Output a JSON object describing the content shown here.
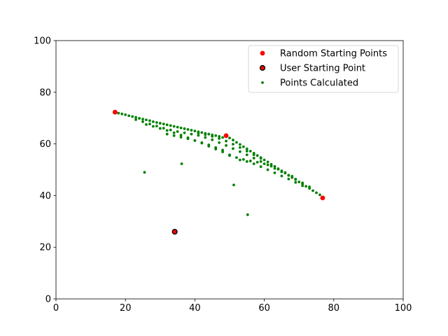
{
  "chart_data": {
    "type": "scatter",
    "title": "",
    "xlabel": "",
    "ylabel": "",
    "xlim": [
      0,
      100
    ],
    "ylim": [
      0,
      100
    ],
    "xticks": [
      "0",
      "20",
      "40",
      "60",
      "80",
      "100"
    ],
    "yticks": [
      "0",
      "20",
      "40",
      "60",
      "80",
      "100"
    ],
    "grid": false,
    "legend_position": "top-right",
    "series": [
      {
        "name": "Random Starting Points",
        "color": "#ff0000",
        "edge_color": "",
        "marker": "large-dot",
        "points": [
          [
            17,
            72.3
          ],
          [
            49,
            63.2
          ],
          [
            76.8,
            39.1
          ]
        ]
      },
      {
        "name": "User Starting Point",
        "color": "#ff0000",
        "edge_color": "#000000",
        "marker": "large-dot-outlined",
        "points": [
          [
            34.2,
            26
          ]
        ]
      },
      {
        "name": "Points Calculated",
        "color": "#008000",
        "edge_color": "",
        "marker": "small-dot",
        "points": [
          [
            18,
            71.9
          ],
          [
            19,
            71.6
          ],
          [
            20,
            71.3
          ],
          [
            21,
            70.9
          ],
          [
            22,
            70.6
          ],
          [
            23,
            70.3
          ],
          [
            24,
            69.9
          ],
          [
            25,
            69.6
          ],
          [
            26,
            69.3
          ],
          [
            27,
            69
          ],
          [
            28,
            68.6
          ],
          [
            29,
            68.3
          ],
          [
            30,
            68
          ],
          [
            31,
            67.7
          ],
          [
            32,
            67.4
          ],
          [
            33,
            67.1
          ],
          [
            34,
            66.8
          ],
          [
            35,
            66.5
          ],
          [
            36,
            66.2
          ],
          [
            37,
            65.9
          ],
          [
            38,
            65.6
          ],
          [
            39,
            65.3
          ],
          [
            40,
            65
          ],
          [
            41,
            64.7
          ],
          [
            42,
            64.4
          ],
          [
            43,
            64.1
          ],
          [
            44,
            63.8
          ],
          [
            45,
            63.5
          ],
          [
            46,
            63.2
          ],
          [
            47,
            62.9
          ],
          [
            48,
            62.5
          ],
          [
            50,
            62.3
          ],
          [
            51,
            61.5
          ],
          [
            52,
            60.6
          ],
          [
            53,
            59.8
          ],
          [
            54,
            58.9
          ],
          [
            55,
            58.1
          ],
          [
            56,
            57.2
          ],
          [
            57,
            56.4
          ],
          [
            58,
            55.5
          ],
          [
            59,
            54.7
          ],
          [
            60,
            53.8
          ],
          [
            61,
            53
          ],
          [
            62,
            52.1
          ],
          [
            63,
            51.3
          ],
          [
            64,
            50.4
          ],
          [
            65,
            49.6
          ],
          [
            66,
            48.7
          ],
          [
            67,
            47.9
          ],
          [
            68,
            47
          ],
          [
            69,
            46.2
          ],
          [
            70,
            45.3
          ],
          [
            71,
            44.5
          ],
          [
            72,
            43.6
          ],
          [
            73,
            42.8
          ],
          [
            74,
            41.9
          ],
          [
            75,
            41.1
          ],
          [
            76,
            40.3
          ],
          [
            23,
            69.4
          ],
          [
            25,
            68.6
          ],
          [
            27,
            67.7
          ],
          [
            29,
            66.9
          ],
          [
            31,
            66.1
          ],
          [
            33,
            65.4
          ],
          [
            35,
            64.8
          ],
          [
            37,
            64.3
          ],
          [
            39,
            63.8
          ],
          [
            41,
            63.3
          ],
          [
            43,
            62.5
          ],
          [
            45,
            61.6
          ],
          [
            47,
            60.5
          ],
          [
            49,
            59.4
          ],
          [
            51,
            58.2
          ],
          [
            53,
            57
          ],
          [
            55,
            55.8
          ],
          [
            57,
            54.5
          ],
          [
            59,
            53.2
          ],
          [
            61,
            51.9
          ],
          [
            63,
            50.5
          ],
          [
            65,
            49.2
          ],
          [
            67,
            47.8
          ],
          [
            69,
            46.4
          ],
          [
            71,
            44.9
          ],
          [
            73,
            43.4
          ],
          [
            26,
            67.5
          ],
          [
            28,
            66.8
          ],
          [
            30,
            66
          ],
          [
            32,
            65.2
          ],
          [
            34,
            64.3
          ],
          [
            36,
            63.4
          ],
          [
            38,
            62.4
          ],
          [
            40,
            61.3
          ],
          [
            42,
            60.3
          ],
          [
            44,
            59.1
          ],
          [
            46,
            58
          ],
          [
            48,
            56.9
          ],
          [
            50,
            55.8
          ],
          [
            32,
            63.8
          ],
          [
            34,
            63.2
          ],
          [
            36,
            62.6
          ],
          [
            38,
            62
          ],
          [
            40,
            61.3
          ],
          [
            42,
            60.5
          ],
          [
            44,
            59.6
          ],
          [
            46,
            58.6
          ],
          [
            48,
            57.6
          ],
          [
            50,
            55.5
          ],
          [
            52,
            54.7
          ],
          [
            54,
            54
          ],
          [
            56,
            53.4
          ],
          [
            58,
            52.9
          ],
          [
            60,
            52.3
          ],
          [
            62,
            51.4
          ],
          [
            64,
            50.2
          ],
          [
            66,
            48.9
          ],
          [
            68,
            47.5
          ],
          [
            53,
            53.8
          ],
          [
            55,
            53.2
          ],
          [
            57,
            52.3
          ],
          [
            59,
            51.2
          ],
          [
            61,
            50
          ],
          [
            63,
            48.8
          ],
          [
            65,
            47.6
          ],
          [
            67,
            46.4
          ],
          [
            69,
            45.1
          ],
          [
            71,
            43.8
          ],
          [
            41,
            64.2
          ],
          [
            43,
            63.6
          ],
          [
            45,
            62.9
          ],
          [
            47,
            62.1
          ],
          [
            49,
            61.1
          ],
          [
            51,
            59.9
          ],
          [
            53,
            58.6
          ],
          [
            55,
            57.2
          ],
          [
            57,
            55.8
          ],
          [
            59,
            54.4
          ],
          [
            25.5,
            49
          ],
          [
            36.2,
            52.3
          ],
          [
            51.2,
            44.1
          ],
          [
            55.2,
            32.6
          ]
        ]
      }
    ]
  }
}
